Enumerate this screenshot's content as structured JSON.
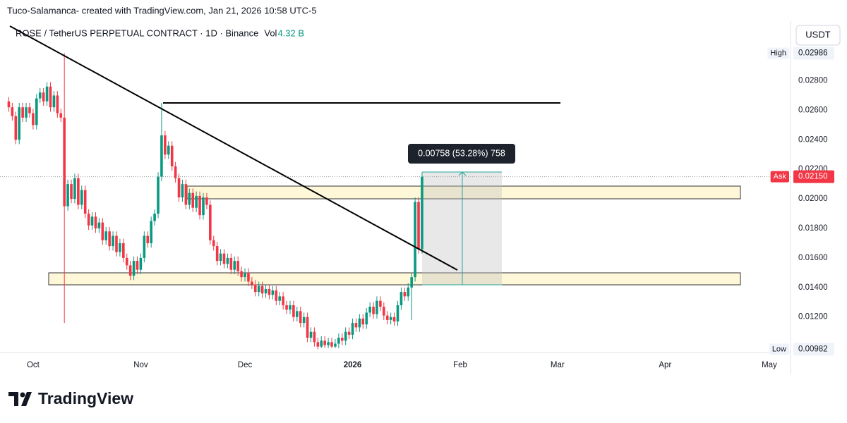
{
  "header": {
    "author_line": "Tuco-Salamanca- created with TradingView.com, Jan 21, 2026 10:58 UTC-5"
  },
  "logo": "TradingView",
  "currency_button": "USDT",
  "chart_data": {
    "type": "candlestick",
    "title": "ROSE / TetherUS PERPETUAL CONTRACT · 1D · Binance",
    "volume": {
      "label": "Vol",
      "value": "4.32 B"
    },
    "up_color": "#089981",
    "down_color": "#f23645",
    "grid": false,
    "xlim": [
      -7.5,
      217.5
    ],
    "xticks": [
      {
        "value": 0,
        "label": "Oct"
      },
      {
        "value": 31,
        "label": "Nov"
      },
      {
        "value": 61,
        "label": "Dec"
      },
      {
        "value": 92,
        "label": "2026"
      },
      {
        "value": 123,
        "label": "Feb"
      },
      {
        "value": 151,
        "label": "Mar"
      },
      {
        "value": 182,
        "label": "Apr"
      },
      {
        "value": 212,
        "label": "May"
      }
    ],
    "ylim": [
      0.0096,
      0.0306
    ],
    "yticks": [
      {
        "value": 0.012,
        "label": "0.01200"
      },
      {
        "value": 0.014,
        "label": "0.01400"
      },
      {
        "value": 0.016,
        "label": "0.01600"
      },
      {
        "value": 0.018,
        "label": "0.01800"
      },
      {
        "value": 0.02,
        "label": "0.02000"
      },
      {
        "value": 0.022,
        "label": "0.02200"
      },
      {
        "value": 0.024,
        "label": "0.02400"
      },
      {
        "value": 0.026,
        "label": "0.02600"
      },
      {
        "value": 0.028,
        "label": "0.02800"
      }
    ],
    "markers": [
      {
        "name": "High",
        "value": 0.02986,
        "label": "0.02986",
        "color": "#f0f3fa",
        "text_color": "#131722",
        "line": false
      },
      {
        "name": "Ask",
        "value": 0.0215,
        "label": "0.02150",
        "color": "#f23645",
        "text_color": "#ffffff",
        "line": true
      },
      {
        "name": "Low",
        "value": 0.00982,
        "label": "0.00982",
        "color": "#f0f3fa",
        "text_color": "#131722",
        "line": false
      }
    ],
    "measure_label": "0.00758 (53.28%) 758",
    "x": [
      -7,
      -6,
      -5,
      -4,
      -3,
      -2,
      -1,
      0,
      1,
      2,
      3,
      4,
      5,
      6,
      7,
      8,
      9,
      10,
      11,
      12,
      13,
      14,
      15,
      16,
      17,
      18,
      19,
      20,
      21,
      22,
      23,
      24,
      25,
      26,
      27,
      28,
      29,
      30,
      31,
      32,
      33,
      34,
      35,
      36,
      37,
      38,
      39,
      40,
      41,
      42,
      43,
      44,
      45,
      46,
      47,
      48,
      49,
      50,
      51,
      52,
      53,
      54,
      55,
      56,
      57,
      58,
      59,
      60,
      61,
      62,
      63,
      64,
      65,
      66,
      67,
      68,
      69,
      70,
      71,
      72,
      73,
      74,
      75,
      76,
      77,
      78,
      79,
      80,
      81,
      82,
      83,
      84,
      85,
      86,
      87,
      88,
      89,
      90,
      91,
      92,
      93,
      94,
      95,
      96,
      97,
      98,
      99,
      100,
      101,
      102,
      103,
      104,
      105,
      106,
      107,
      108,
      109,
      110,
      111,
      112
    ],
    "open": [
      0.0266,
      0.0262,
      0.0256,
      0.024,
      0.0262,
      0.0255,
      0.0262,
      0.0258,
      0.025,
      0.0268,
      0.0272,
      0.0266,
      0.0276,
      0.0262,
      0.027,
      0.0258,
      0.0255,
      0.0195,
      0.021,
      0.02,
      0.0214,
      0.0196,
      0.0206,
      0.019,
      0.0182,
      0.0188,
      0.018,
      0.0184,
      0.0172,
      0.0178,
      0.0168,
      0.0175,
      0.0164,
      0.017,
      0.016,
      0.0155,
      0.0148,
      0.0158,
      0.0152,
      0.016,
      0.0175,
      0.017,
      0.0185,
      0.019,
      0.0215,
      0.0243,
      0.023,
      0.0236,
      0.0222,
      0.0214,
      0.0201,
      0.021,
      0.0196,
      0.0204,
      0.0194,
      0.0202,
      0.0189,
      0.0201,
      0.0196,
      0.0172,
      0.0168,
      0.0158,
      0.0163,
      0.0156,
      0.016,
      0.0152,
      0.0158,
      0.0151,
      0.0147,
      0.015,
      0.0144,
      0.0142,
      0.0137,
      0.0141,
      0.0136,
      0.0139,
      0.0135,
      0.0138,
      0.0131,
      0.0134,
      0.0128,
      0.0125,
      0.0128,
      0.012,
      0.0124,
      0.0116,
      0.012,
      0.0106,
      0.011,
      0.0103,
      0.01,
      0.0104,
      0.0101,
      0.0103,
      0.01,
      0.0102,
      0.0106,
      0.0104,
      0.011,
      0.0108,
      0.0116,
      0.0113,
      0.0119,
      0.0115,
      0.0123,
      0.0127,
      0.0122,
      0.0131,
      0.0127,
      0.0121,
      0.0118,
      0.012,
      0.0117,
      0.0128,
      0.0137,
      0.0134,
      0.014,
      0.0147,
      0.0198,
      0.0166
    ],
    "high": [
      0.0269,
      0.0265,
      0.0259,
      0.0265,
      0.0265,
      0.0265,
      0.0265,
      0.0261,
      0.0271,
      0.0275,
      0.0275,
      0.0279,
      0.0279,
      0.0273,
      0.0273,
      0.0261,
      0.02986,
      0.0213,
      0.0213,
      0.0217,
      0.0217,
      0.0209,
      0.0209,
      0.0193,
      0.0191,
      0.0191,
      0.0187,
      0.0187,
      0.0181,
      0.0181,
      0.0178,
      0.0178,
      0.0173,
      0.0173,
      0.0163,
      0.0158,
      0.0161,
      0.0161,
      0.0163,
      0.0178,
      0.0178,
      0.0188,
      0.0193,
      0.0218,
      0.0265,
      0.0246,
      0.0239,
      0.0239,
      0.0225,
      0.0217,
      0.0213,
      0.0213,
      0.0207,
      0.0207,
      0.0205,
      0.0205,
      0.0204,
      0.0204,
      0.0199,
      0.0175,
      0.0171,
      0.0166,
      0.0166,
      0.0163,
      0.0163,
      0.0161,
      0.0161,
      0.0154,
      0.0153,
      0.0153,
      0.0147,
      0.0145,
      0.0144,
      0.0144,
      0.0142,
      0.0142,
      0.0141,
      0.0141,
      0.0137,
      0.0137,
      0.0131,
      0.0131,
      0.0131,
      0.0127,
      0.0127,
      0.0123,
      0.0123,
      0.0113,
      0.0113,
      0.0106,
      0.0107,
      0.0107,
      0.0106,
      0.0106,
      0.0105,
      0.0109,
      0.0109,
      0.0113,
      0.0113,
      0.0119,
      0.0119,
      0.0122,
      0.0122,
      0.0126,
      0.013,
      0.013,
      0.0134,
      0.0134,
      0.013,
      0.0124,
      0.0123,
      0.0123,
      0.0131,
      0.014,
      0.014,
      0.0143,
      0.015,
      0.0201,
      0.0201,
      0.0218
    ],
    "low": [
      0.0259,
      0.0253,
      0.0237,
      0.0237,
      0.0252,
      0.0252,
      0.0255,
      0.0247,
      0.0247,
      0.0265,
      0.0263,
      0.0263,
      0.0259,
      0.0259,
      0.0255,
      0.0252,
      0.0116,
      0.0192,
      0.0197,
      0.0197,
      0.0193,
      0.0193,
      0.0187,
      0.0179,
      0.0179,
      0.0177,
      0.0177,
      0.0169,
      0.0169,
      0.0165,
      0.0165,
      0.0161,
      0.0161,
      0.0157,
      0.0152,
      0.0145,
      0.0145,
      0.0149,
      0.0149,
      0.0157,
      0.0167,
      0.0167,
      0.0182,
      0.0187,
      0.0212,
      0.0227,
      0.0227,
      0.0219,
      0.0211,
      0.0198,
      0.0198,
      0.0193,
      0.0193,
      0.0191,
      0.0191,
      0.0186,
      0.0186,
      0.0193,
      0.0169,
      0.0165,
      0.0155,
      0.0155,
      0.0153,
      0.0153,
      0.0149,
      0.0149,
      0.0148,
      0.0144,
      0.0144,
      0.0141,
      0.0139,
      0.0134,
      0.0134,
      0.0133,
      0.0133,
      0.0132,
      0.0132,
      0.0128,
      0.0128,
      0.0125,
      0.0122,
      0.0122,
      0.0117,
      0.0117,
      0.0113,
      0.0113,
      0.0103,
      0.0103,
      0.01,
      0.00982,
      0.0099,
      0.0099,
      0.0099,
      0.0099,
      0.0099,
      0.0099,
      0.0101,
      0.0101,
      0.0105,
      0.0105,
      0.011,
      0.011,
      0.0112,
      0.0112,
      0.012,
      0.0119,
      0.0119,
      0.0124,
      0.0118,
      0.0115,
      0.0115,
      0.0114,
      0.0114,
      0.0125,
      0.0131,
      0.0131,
      0.0118,
      0.0144,
      0.0163,
      0.0163
    ],
    "close": [
      0.0262,
      0.0256,
      0.024,
      0.0262,
      0.0255,
      0.0262,
      0.0258,
      0.025,
      0.0268,
      0.0272,
      0.0266,
      0.0276,
      0.0262,
      0.027,
      0.0258,
      0.0255,
      0.0195,
      0.021,
      0.02,
      0.0214,
      0.0196,
      0.0206,
      0.019,
      0.0182,
      0.0188,
      0.018,
      0.0184,
      0.0172,
      0.0178,
      0.0168,
      0.0175,
      0.0164,
      0.017,
      0.016,
      0.0155,
      0.0148,
      0.0158,
      0.0152,
      0.016,
      0.0175,
      0.017,
      0.0185,
      0.019,
      0.0215,
      0.0243,
      0.023,
      0.0236,
      0.0222,
      0.0214,
      0.0201,
      0.021,
      0.0196,
      0.0204,
      0.0194,
      0.0202,
      0.0189,
      0.0201,
      0.0196,
      0.0172,
      0.0168,
      0.0158,
      0.0163,
      0.0156,
      0.016,
      0.0152,
      0.0158,
      0.0151,
      0.0147,
      0.015,
      0.0144,
      0.0142,
      0.0137,
      0.0141,
      0.0136,
      0.0139,
      0.0135,
      0.0138,
      0.0131,
      0.0134,
      0.0128,
      0.0125,
      0.0128,
      0.012,
      0.0124,
      0.0116,
      0.012,
      0.0106,
      0.011,
      0.0103,
      0.01,
      0.0104,
      0.0101,
      0.0103,
      0.01,
      0.0102,
      0.0106,
      0.0104,
      0.011,
      0.0108,
      0.0116,
      0.0113,
      0.0119,
      0.0115,
      0.0123,
      0.0127,
      0.0122,
      0.0131,
      0.0127,
      0.0121,
      0.0118,
      0.012,
      0.0117,
      0.0128,
      0.0137,
      0.0134,
      0.014,
      0.0147,
      0.0198,
      0.0166,
      0.0215
    ]
  }
}
